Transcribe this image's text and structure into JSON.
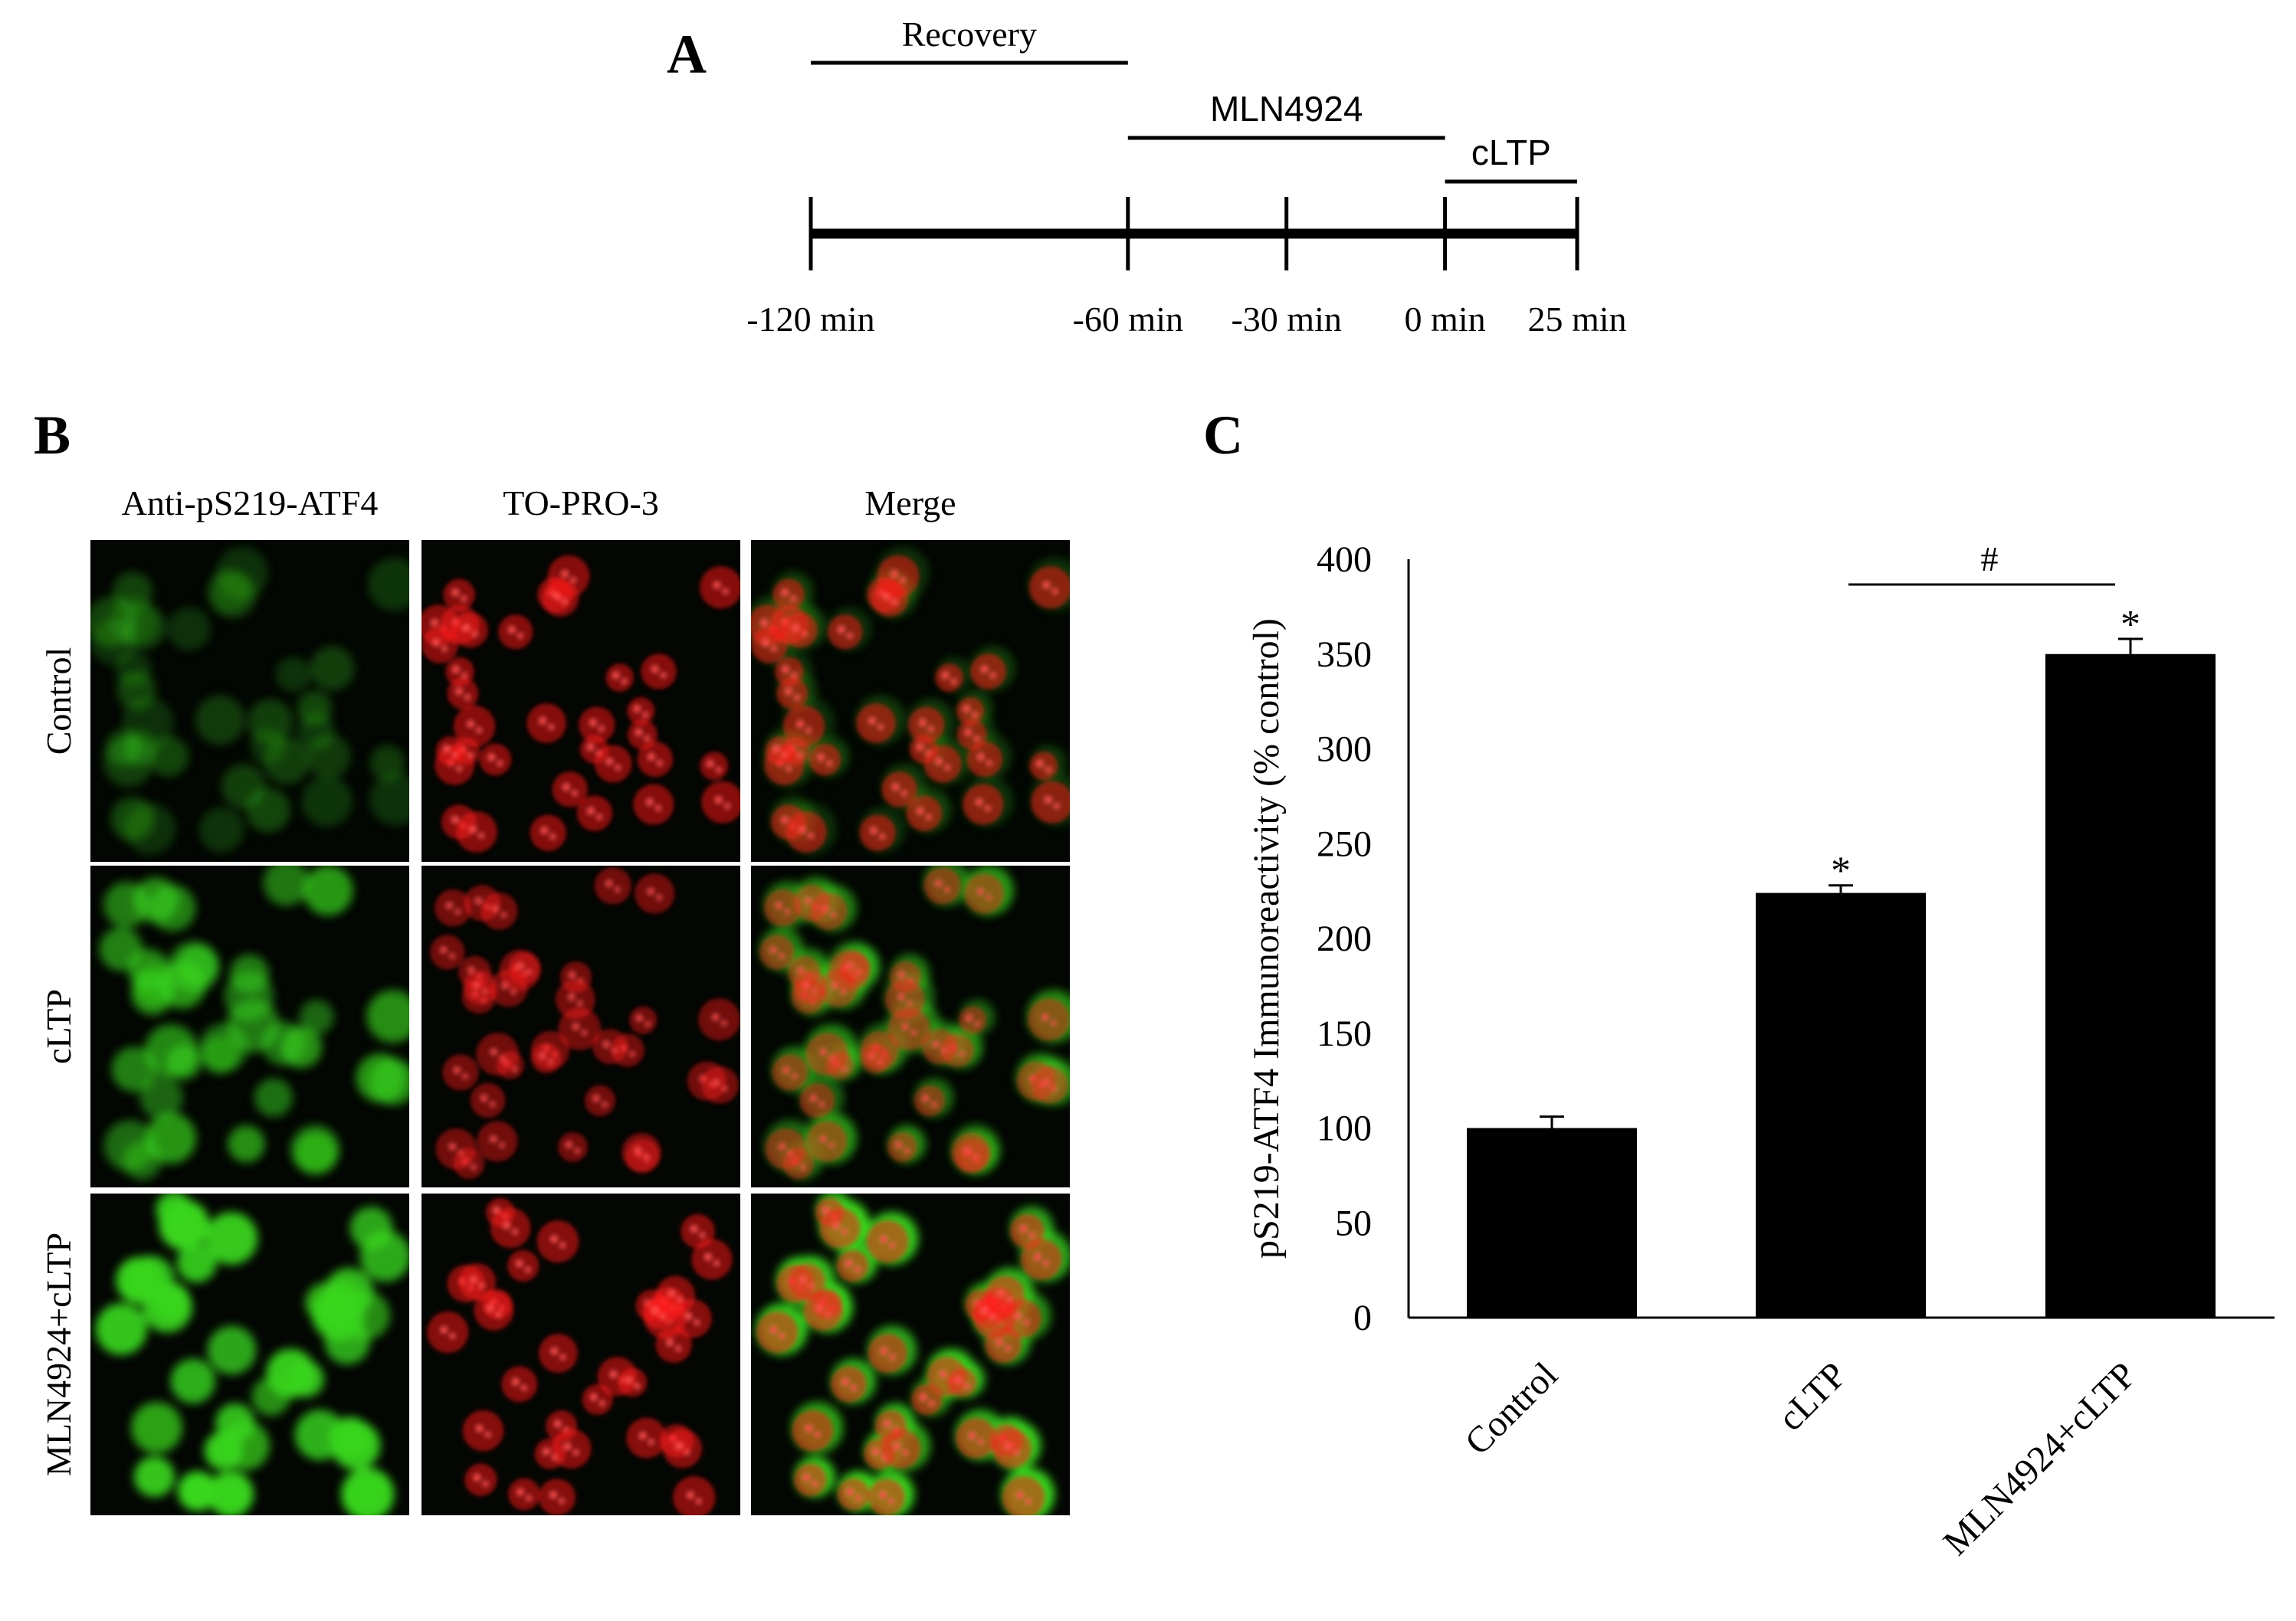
{
  "panels": {
    "a": {
      "letter": "A",
      "bars": [
        {
          "label": "Recovery",
          "start": -120,
          "end": -60
        },
        {
          "label": "MLN4924",
          "start": -60,
          "end": 0
        },
        {
          "label": "cLTP",
          "start": 0,
          "end": 25
        }
      ],
      "ticks": [
        {
          "value": -120,
          "label": "-120 min"
        },
        {
          "value": -60,
          "label": "-60 min"
        },
        {
          "value": -30,
          "label": "-30 min"
        },
        {
          "value": 0,
          "label": "0 min"
        },
        {
          "value": 25,
          "label": "25 min"
        }
      ]
    },
    "b": {
      "letter": "B",
      "columns": [
        "Anti-pS219-ATF4",
        "TO-PRO-3",
        "Merge"
      ],
      "rows": [
        "Control",
        "cLTP",
        "MLN4924+cLTP"
      ],
      "colors": {
        "green": "#39d61e",
        "red": "#ff1a1a",
        "background": "#030603"
      },
      "intensity": {
        "green": [
          0.32,
          0.72,
          1.0
        ],
        "red": [
          0.95,
          0.8,
          0.95
        ]
      }
    },
    "c": {
      "letter": "C"
    }
  },
  "chart_data": {
    "type": "bar",
    "categories": [
      "Control",
      "cLTP",
      "MLN4924+cLTP"
    ],
    "values": [
      100,
      224,
      350
    ],
    "errors": [
      6,
      4,
      8
    ],
    "ylabel": "pS219-ATF4 Immunoreactivity (% control)",
    "xlabel": "",
    "ylim": [
      0,
      400
    ],
    "yticks": [
      0,
      50,
      100,
      150,
      200,
      250,
      300,
      350,
      400
    ],
    "bar_color": "#000000",
    "significance_marks": [
      "",
      "*",
      "*"
    ],
    "comparison": {
      "from": 1,
      "to": 2,
      "symbol": "#"
    }
  }
}
